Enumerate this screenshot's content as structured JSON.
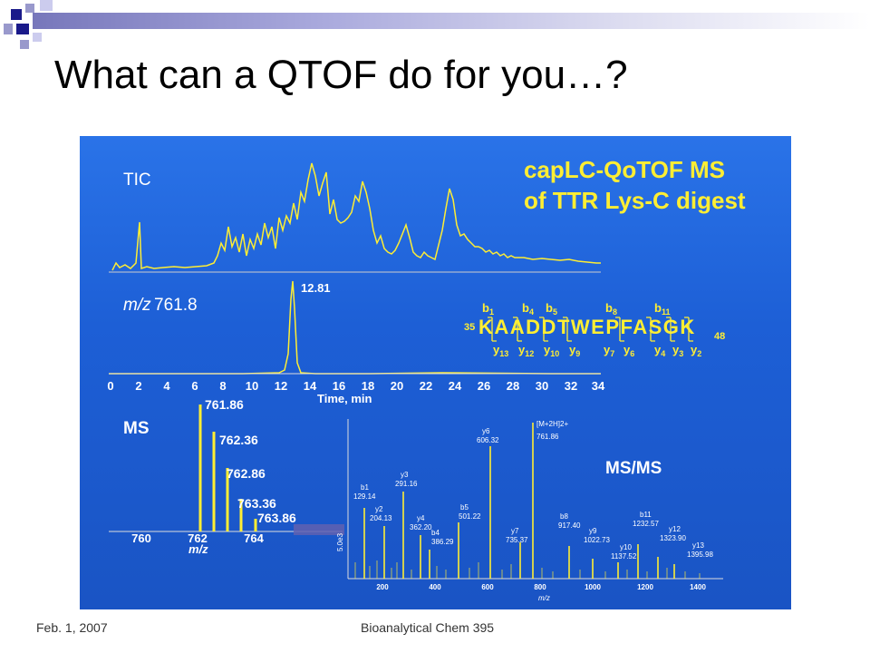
{
  "slide": {
    "title": "What can a QTOF do for you…?",
    "footer_date": "Feb. 1, 2007",
    "footer_course": "Bioanalytical Chem 395"
  },
  "figure": {
    "headline_line1": "capLC-QoTOF MS",
    "headline_line2": "of TTR Lys-C digest",
    "tic_label": "TIC",
    "xic_label_italic": "m/z",
    "xic_label_value": "761.8",
    "xic_peak_label": "12.81",
    "time_ticks": [
      "0",
      "2",
      "4",
      "6",
      "8",
      "10",
      "12",
      "14",
      "16",
      "18",
      "20",
      "22",
      "24",
      "26",
      "28",
      "30",
      "32",
      "34"
    ],
    "time_axis_label": "Time, min",
    "ms_label": "MS",
    "msms_label": "MS/MS",
    "ms_peaks": [
      "761.86",
      "762.36",
      "762.86",
      "763.36",
      "763.86"
    ],
    "ms_ticks": [
      "760",
      "762",
      "764"
    ],
    "ms_axis_label": "m/z",
    "msms_ticks": [
      "200",
      "400",
      "600",
      "800",
      "1000",
      "1200",
      "1400"
    ],
    "msms_axis_label": "m/z",
    "msms_y_label": "5.0e3",
    "sequence": {
      "start_num": "35",
      "residues": "KAADDTWEPFASGK",
      "end_num": "48",
      "b_ions": [
        {
          "b": "b",
          "n": "1"
        },
        {
          "b": "b",
          "n": "4"
        },
        {
          "b": "b",
          "n": "5"
        },
        {
          "b": "b",
          "n": "8"
        },
        {
          "b": "b",
          "n": "11"
        }
      ],
      "y_ions": [
        {
          "y": "y",
          "n": "13"
        },
        {
          "y": "y",
          "n": "12"
        },
        {
          "y": "y",
          "n": "10"
        },
        {
          "y": "y",
          "n": "9"
        },
        {
          "y": "y",
          "n": "7"
        },
        {
          "y": "y",
          "n": "6"
        },
        {
          "y": "y",
          "n": "4"
        },
        {
          "y": "y",
          "n": "3"
        },
        {
          "y": "y",
          "n": "2"
        }
      ]
    },
    "msms_annotations": [
      {
        "ion": "y6",
        "mz": "606.32"
      },
      {
        "ion": "[M+2H]2+",
        "mz": "761.86"
      },
      {
        "ion": "b1",
        "mz": "129.14"
      },
      {
        "ion": "y3",
        "mz": "291.16"
      },
      {
        "ion": "y2",
        "mz": "204.13"
      },
      {
        "ion": "y4",
        "mz": "362.20"
      },
      {
        "ion": "b4",
        "mz": "386.29"
      },
      {
        "ion": "b5",
        "mz": "501.22"
      },
      {
        "ion": "y7",
        "mz": "735.37"
      },
      {
        "ion": "b8",
        "mz": "917.40"
      },
      {
        "ion": "y9",
        "mz": "1022.73"
      },
      {
        "ion": "y10",
        "mz": "1137.52"
      },
      {
        "ion": "b11",
        "mz": "1232.57"
      },
      {
        "ion": "y12",
        "mz": "1323.90"
      },
      {
        "ion": "y13",
        "mz": "1395.98"
      }
    ]
  }
}
